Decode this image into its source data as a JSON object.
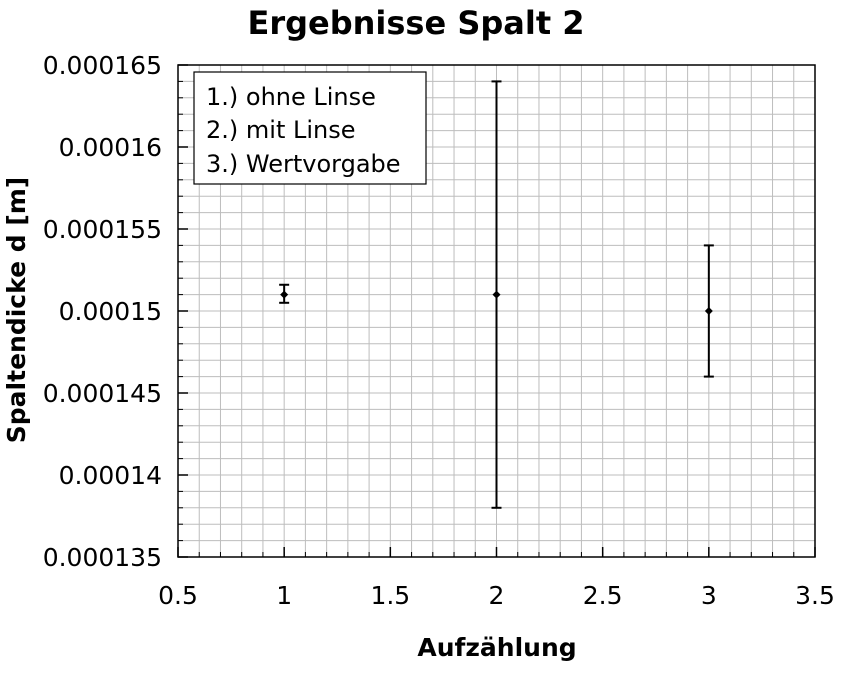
{
  "chart_data": {
    "type": "scatter",
    "title": "Ergebnisse Spalt 2",
    "xlabel": "Aufzählung",
    "ylabel": "Spaltendicke d [m]",
    "xlim": [
      0.5,
      3.5
    ],
    "ylim": [
      0.000135,
      0.000165
    ],
    "x_ticks": [
      0.5,
      1,
      1.5,
      2,
      2.5,
      3,
      3.5
    ],
    "x_tick_labels": [
      "0.5",
      "1",
      "1.5",
      "2",
      "2.5",
      "3",
      "3.5"
    ],
    "y_ticks": [
      0.000135,
      0.00014,
      0.000145,
      0.00015,
      0.000155,
      0.00016,
      0.000165
    ],
    "y_tick_labels": [
      "0.000135",
      "0.00014",
      "0.000145",
      "0.00015",
      "0.000155",
      "0.00016",
      "0.000165"
    ],
    "grid": true,
    "legend_position": "top-left",
    "legend": [
      "1.) ohne Linse",
      "2.) mit Linse",
      "3.) Wertvorgabe"
    ],
    "color": "#000000",
    "points": [
      {
        "x": 1,
        "y": 0.000151,
        "y_err_low": 0.0001505,
        "y_err_high": 0.0001516
      },
      {
        "x": 2,
        "y": 0.000151,
        "y_err_low": 0.000138,
        "y_err_high": 0.000164
      },
      {
        "x": 3,
        "y": 0.00015,
        "y_err_low": 0.000146,
        "y_err_high": 0.000154
      }
    ]
  }
}
